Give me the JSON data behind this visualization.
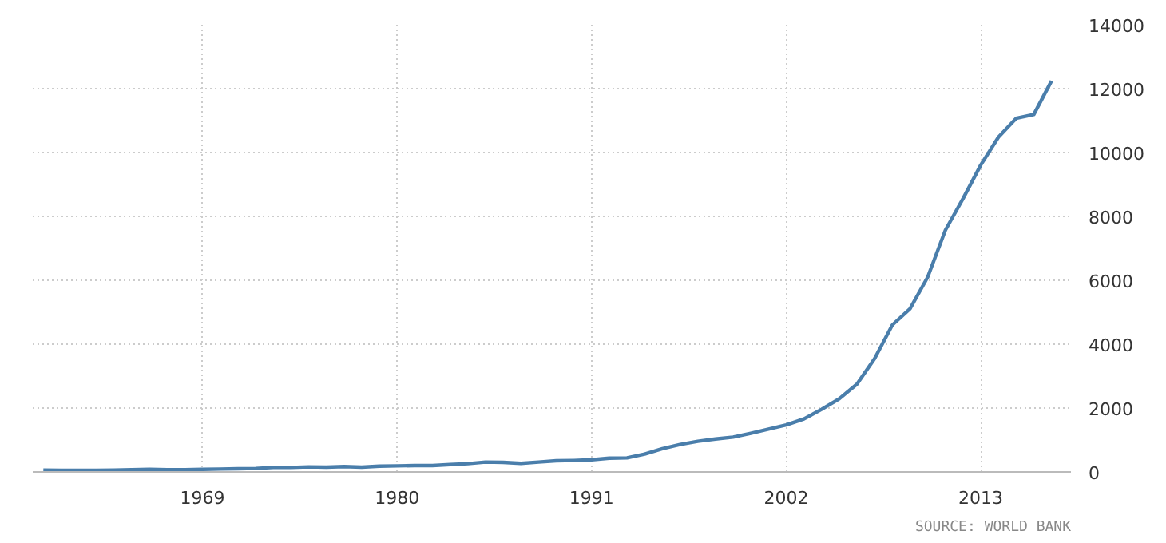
{
  "chart_data": {
    "type": "line",
    "x": [
      1960,
      1961,
      1962,
      1963,
      1964,
      1965,
      1966,
      1967,
      1968,
      1969,
      1970,
      1971,
      1972,
      1973,
      1974,
      1975,
      1976,
      1977,
      1978,
      1979,
      1980,
      1981,
      1982,
      1983,
      1984,
      1985,
      1986,
      1987,
      1988,
      1989,
      1990,
      1991,
      1992,
      1993,
      1994,
      1995,
      1996,
      1997,
      1998,
      1999,
      2000,
      2001,
      2002,
      2003,
      2004,
      2005,
      2006,
      2007,
      2008,
      2009,
      2010,
      2011,
      2012,
      2013,
      2014,
      2015,
      2016,
      2017
    ],
    "series": [
      {
        "color": "#4a7eab",
        "values": [
          60,
          50,
          50,
          50,
          60,
          70,
          80,
          70,
          70,
          80,
          90,
          100,
          110,
          140,
          140,
          160,
          150,
          170,
          150,
          180,
          190,
          200,
          200,
          230,
          260,
          310,
          300,
          270,
          310,
          350,
          360,
          380,
          430,
          440,
          560,
          730,
          860,
          960,
          1030,
          1090,
          1210,
          1340,
          1470,
          1660,
          1960,
          2290,
          2750,
          3550,
          4600,
          5110,
          6100,
          7570,
          8560,
          9610,
          10480,
          11070,
          11190,
          12240
        ]
      }
    ],
    "xlim": [
      1959.4,
      2018.1
    ],
    "xticks": [
      1969,
      1980,
      1991,
      2002,
      2013
    ],
    "ylim": [
      0,
      14000
    ],
    "yticks": [
      0,
      2000,
      4000,
      6000,
      8000,
      10000,
      12000,
      14000
    ],
    "grid": true,
    "marker": "none",
    "line_style": "solid",
    "annotations": [
      "SOURCE: WORLD BANK"
    ]
  }
}
